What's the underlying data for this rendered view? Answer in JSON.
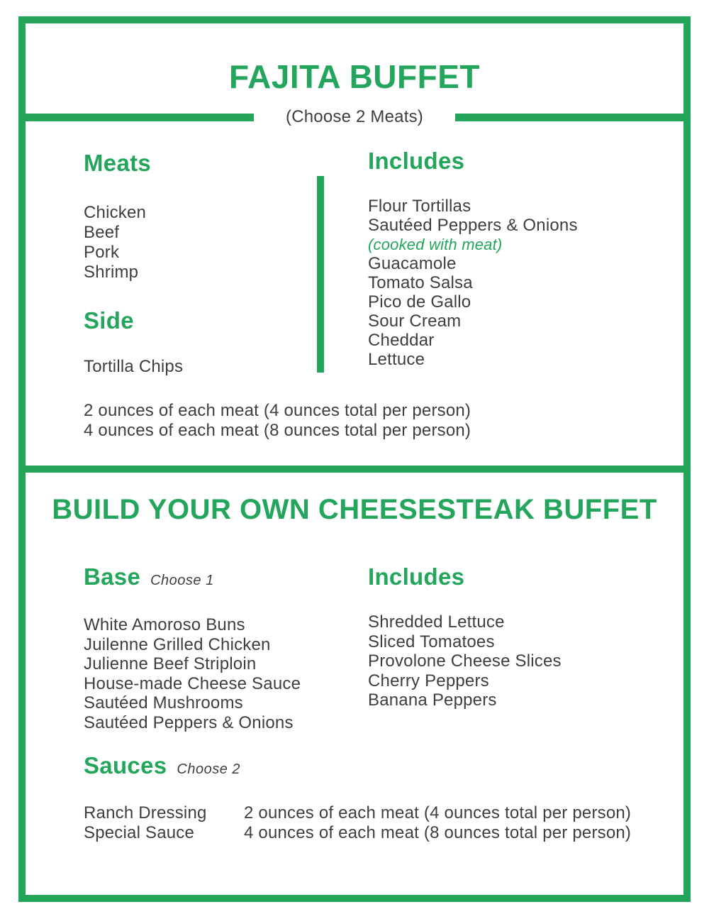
{
  "colors": {
    "accent_green": "#23A65B",
    "body_text": "#3E3E40"
  },
  "fajita_section": {
    "title": "FAJITA BUFFET",
    "subtitle": "(Choose 2 Meats)",
    "meats": {
      "heading": "Meats",
      "items": [
        "Chicken",
        "Beef",
        "Pork",
        "Shrimp"
      ]
    },
    "side": {
      "heading": "Side",
      "items": [
        "Tortilla Chips"
      ]
    },
    "includes": {
      "heading": "Includes",
      "items": [
        "Flour Tortillas",
        {
          "label": "Sautéed Peppers & Onions",
          "note": "(cooked with meat)"
        },
        "Guacamole",
        "Tomato Salsa",
        "Pico de Gallo",
        "Sour Cream",
        "Cheddar",
        "Lettuce"
      ]
    },
    "portions": [
      "2 ounces of each meat (4 ounces total per person)",
      "4 ounces of each meat (8 ounces total per person)"
    ]
  },
  "cheesesteak_section": {
    "title": "BUILD YOUR OWN CHEESESTEAK BUFFET",
    "base": {
      "heading": "Base",
      "qualifier": "Choose 1",
      "items": [
        "White Amoroso Buns",
        "Juilenne Grilled Chicken",
        "Julienne Beef Striploin",
        "House-made Cheese Sauce",
        "Sautéed Mushrooms",
        "Sautéed Peppers & Onions"
      ]
    },
    "includes": {
      "heading": "Includes",
      "items": [
        "Shredded Lettuce",
        "Sliced Tomatoes",
        "Provolone Cheese Slices",
        "Cherry Peppers",
        "Banana Peppers"
      ]
    },
    "sauces": {
      "heading": "Sauces",
      "qualifier": "Choose 2",
      "items": [
        "Ranch Dressing",
        "Special Sauce"
      ]
    },
    "portions": [
      "2 ounces of each meat (4 ounces total per person)",
      "4 ounces of each meat (8 ounces total per person)"
    ]
  }
}
